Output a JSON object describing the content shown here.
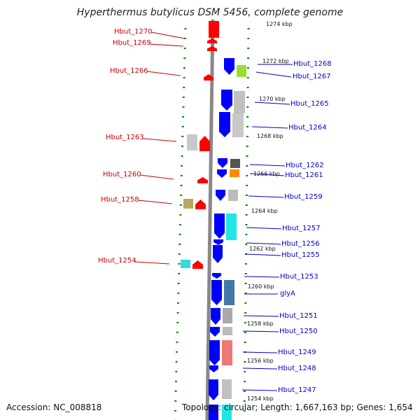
{
  "title": "Hyperthermus butylicus DSM 5456, complete genome",
  "footer": {
    "accession": "Accession: NC_008818",
    "topology": "Topology: circular; Length: 1,667,163 bp; Genes: 1,654"
  },
  "colors": {
    "minus_strand_gene": "#ff0000",
    "plus_strand_gene": "#0000ff",
    "minus_label": "#cc0000",
    "plus_label": "#0000cc",
    "ruler_ticks": "#008800",
    "backbone": "#888888"
  },
  "kbp_marks": [
    {
      "label": "1274 kbp",
      "row": 0
    },
    {
      "label": "1272 kbp",
      "row": 1
    },
    {
      "label": "1270 kbp",
      "row": 2
    },
    {
      "label": "1268 kbp",
      "row": 3
    },
    {
      "label": "1266 kbp",
      "row": 4
    },
    {
      "label": "1264 kbp",
      "row": 5
    },
    {
      "label": "1262 kbp",
      "row": 6
    },
    {
      "label": "1260 kbp",
      "row": 7
    },
    {
      "label": "1258 kbp",
      "row": 8
    },
    {
      "label": "1256 kbp",
      "row": 9
    },
    {
      "label": "1254 kbp",
      "row": 10
    }
  ],
  "left_labels": [
    "Hbut_1270",
    "Hbut_1269",
    "Hbut_1266",
    "Hbut_1263",
    "Hbut_1260",
    "Hbut_1258",
    "Hbut_1254"
  ],
  "right_labels": [
    "Hbut_1268",
    "Hbut_1267",
    "Hbut_1265",
    "Hbut_1264",
    "Hbut_1262",
    "Hbut_1261",
    "Hbut_1259",
    "Hbut_1257",
    "Hbut_1256",
    "Hbut_1255",
    "Hbut_1253",
    "glyA",
    "Hbut_1251",
    "Hbut_1250",
    "Hbut_1249",
    "Hbut_1248",
    "Hbut_1247"
  ]
}
